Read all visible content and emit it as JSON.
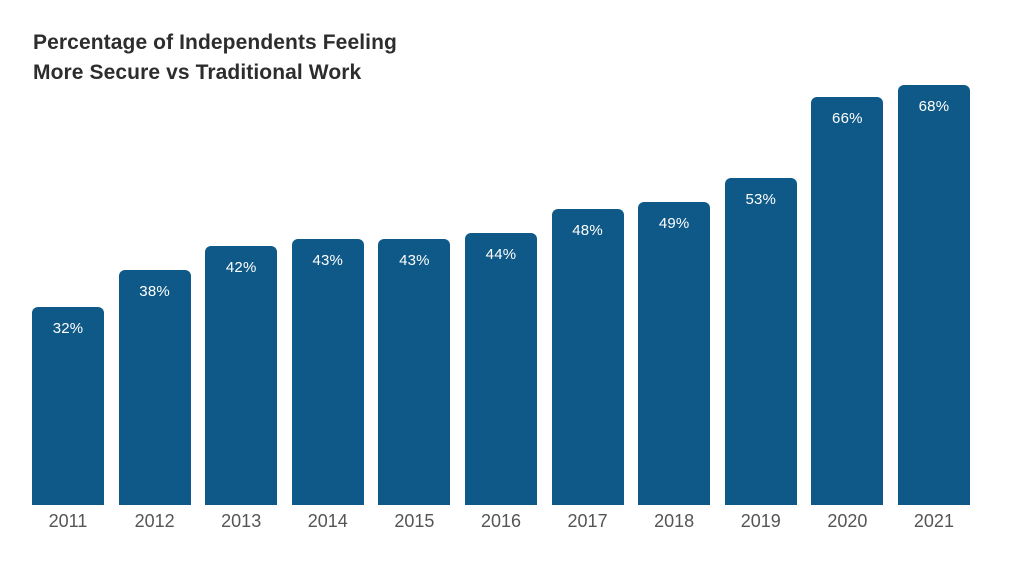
{
  "header": {
    "title_line1": "Percentage of Independents Feeling",
    "title_line2": "More Secure vs Traditional Work"
  },
  "chart_data": {
    "type": "bar",
    "title": "Percentage of Independents Feeling More Secure vs Traditional Work",
    "categories": [
      "2011",
      "2012",
      "2013",
      "2014",
      "2015",
      "2016",
      "2017",
      "2018",
      "2019",
      "2020",
      "2021"
    ],
    "values": [
      32,
      38,
      42,
      43,
      43,
      44,
      48,
      49,
      53,
      66,
      68
    ],
    "value_labels": [
      "32%",
      "38%",
      "42%",
      "43%",
      "43%",
      "44%",
      "48%",
      "49%",
      "53%",
      "66%",
      "68%"
    ],
    "xlabel": "",
    "ylabel": "",
    "ylim": [
      0,
      68
    ],
    "grid": false,
    "legend": false,
    "bar_color": "#0f5988",
    "value_label_color": "#ffffff",
    "tick_label_color": "#555555",
    "title_color": "#2d2d2d"
  }
}
